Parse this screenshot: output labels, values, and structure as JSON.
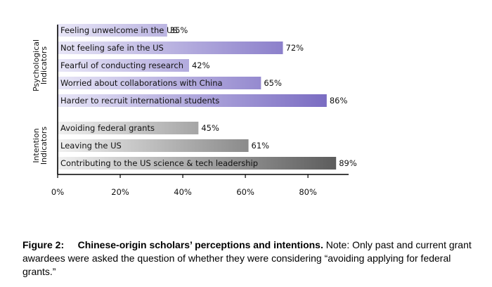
{
  "chart_data": {
    "type": "bar",
    "orientation": "horizontal",
    "groups": [
      {
        "name": "Psychological Indicators",
        "name_lines": [
          "Psychological",
          "Indicators"
        ],
        "categories": [
          "Feeling unwelcome in the US",
          "Not feeling safe in the US",
          "Fearful of conducting research",
          "Worried about collaborations with China",
          "Harder to recruit international students"
        ],
        "values": [
          35,
          72,
          42,
          65,
          86
        ],
        "labels": [
          "35%",
          "72%",
          "42%",
          "65%",
          "86%"
        ],
        "gradient": [
          "#e8e6f7",
          "#7a6cc2"
        ]
      },
      {
        "name": "Intention Indicators",
        "name_lines": [
          "Intention",
          "Indicators"
        ],
        "categories": [
          "Avoiding federal grants",
          "Leaving the US",
          "Contributing to the US science & tech leadership"
        ],
        "values": [
          45,
          61,
          89
        ],
        "labels": [
          "45%",
          "61%",
          "89%"
        ],
        "gradient": [
          "#f0f0f0",
          "#5c5c5c"
        ]
      }
    ],
    "xlim": [
      0,
      93
    ],
    "xticks": [
      0,
      20,
      40,
      60,
      80
    ],
    "xtick_labels": [
      "0%",
      "20%",
      "40%",
      "60%",
      "80%"
    ],
    "grid": false,
    "xlabel": "",
    "ylabel": ""
  },
  "caption": {
    "number": "Figure 2:",
    "title": "Chinese-origin scholars’ perceptions and intentions.",
    "note": "Note: Only past and current grant awardees were asked the question of whether they were considering “avoiding applying for federal grants.”"
  }
}
